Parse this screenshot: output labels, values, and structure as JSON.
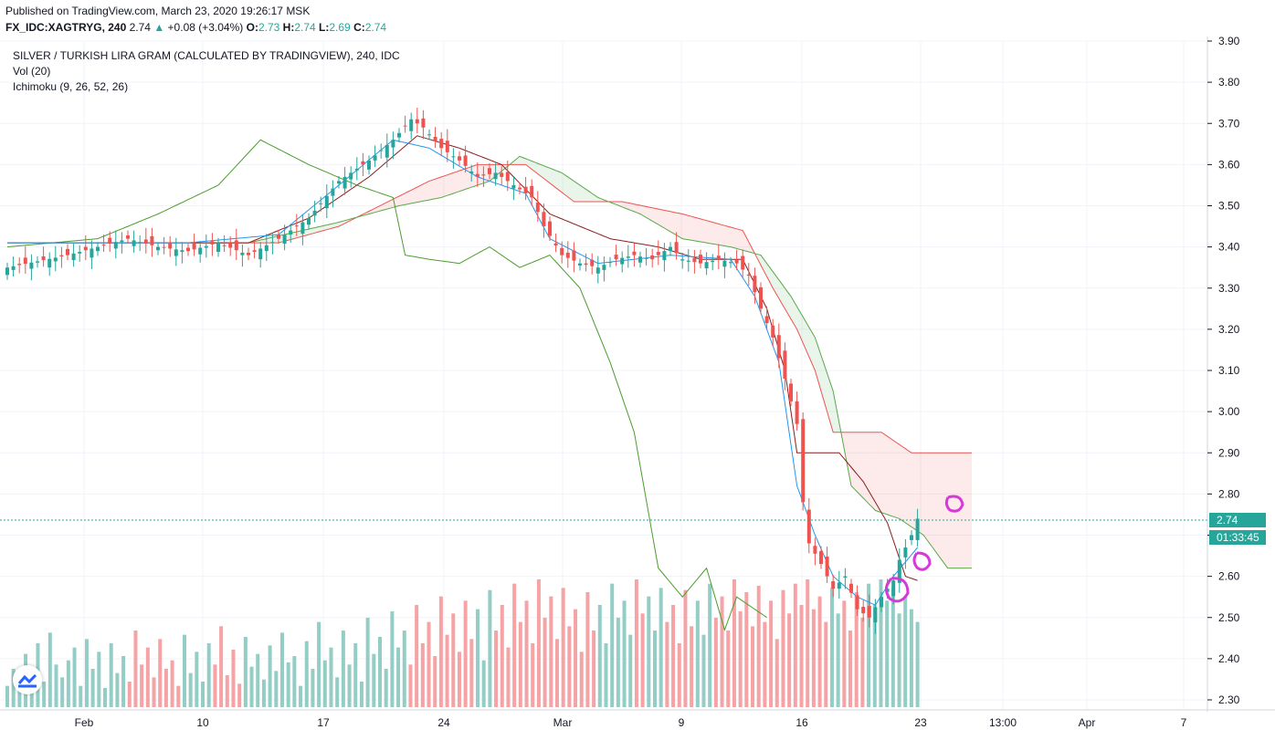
{
  "header": {
    "published": "Published on TradingView.com, March 23, 2020 19:26:17 MSK",
    "symbol": "FX_IDC:XAGTRYG, 240",
    "price": "2.74",
    "change": "+0.08 (+3.04%)",
    "o_label": "O:",
    "o_value": "2.73",
    "h_label": "H:",
    "h_value": "2.74",
    "l_label": "L:",
    "l_value": "2.69",
    "c_label": "C:",
    "c_value": "2.74"
  },
  "legend": {
    "title": "SILVER / TURKISH LIRA GRAM (CALCULATED BY TRADINGVIEW), 240, IDC",
    "volume": "Vol (20)",
    "ichimoku": "Ichimoku (9, 26, 52, 26)"
  },
  "price_tag": {
    "value": "2.74",
    "countdown": "01:33:45"
  },
  "colors": {
    "up": "#26a69a",
    "down": "#ef5350",
    "vol_up": "#93cdc5",
    "vol_down": "#f5a3a5",
    "tenkan": "#2196f3",
    "kijun": "#8b1e1e",
    "chikou": "#4c9c2e",
    "span_a": "#5aa84a",
    "span_b": "#ef5350",
    "annotation": "#d63ad6"
  },
  "chart_data": {
    "type": "candlestick",
    "ylim": [
      2.28,
      3.91
    ],
    "y_ticks": [
      "3.90",
      "3.80",
      "3.70",
      "3.60",
      "3.50",
      "3.40",
      "3.30",
      "3.20",
      "3.10",
      "3.00",
      "2.90",
      "2.80",
      "2.70",
      "2.60",
      "2.50",
      "2.40",
      "2.30"
    ],
    "x_ticks": [
      "Feb",
      "10",
      "17",
      "24",
      "Mar",
      "9",
      "16",
      "23",
      "13:00",
      "Apr",
      "7"
    ],
    "last_price": 2.74,
    "price_path": [
      [
        0,
        3.35
      ],
      [
        10,
        3.38
      ],
      [
        20,
        3.42
      ],
      [
        25,
        3.4
      ],
      [
        30,
        3.39
      ],
      [
        35,
        3.41
      ],
      [
        40,
        3.38
      ],
      [
        45,
        3.42
      ],
      [
        50,
        3.47
      ],
      [
        55,
        3.56
      ],
      [
        60,
        3.61
      ],
      [
        64,
        3.66
      ],
      [
        67,
        3.71
      ],
      [
        69,
        3.69
      ],
      [
        72,
        3.64
      ],
      [
        75,
        3.61
      ],
      [
        78,
        3.57
      ],
      [
        81,
        3.58
      ],
      [
        84,
        3.55
      ],
      [
        87,
        3.52
      ],
      [
        89,
        3.45
      ],
      [
        92,
        3.38
      ],
      [
        95,
        3.36
      ],
      [
        98,
        3.35
      ],
      [
        101,
        3.37
      ],
      [
        104,
        3.38
      ],
      [
        107,
        3.37
      ],
      [
        110,
        3.4
      ],
      [
        112,
        3.37
      ],
      [
        115,
        3.36
      ],
      [
        118,
        3.37
      ],
      [
        121,
        3.36
      ],
      [
        123,
        3.33
      ],
      [
        125,
        3.25
      ],
      [
        127,
        3.18
      ],
      [
        129,
        3.08
      ],
      [
        131,
        2.97
      ],
      [
        132,
        2.78
      ],
      [
        133,
        2.68
      ],
      [
        135,
        2.63
      ],
      [
        137,
        2.57
      ],
      [
        139,
        2.6
      ],
      [
        141,
        2.52
      ],
      [
        143,
        2.5
      ],
      [
        145,
        2.55
      ],
      [
        147,
        2.59
      ],
      [
        148,
        2.64
      ],
      [
        150,
        2.7
      ],
      [
        151,
        2.74
      ]
    ],
    "volume_max": 0.6,
    "volumes": [
      0.1,
      0.18,
      0.08,
      0.25,
      0.15,
      0.3,
      0.12,
      0.35,
      0.2,
      0.14,
      0.22,
      0.28,
      0.1,
      0.32,
      0.18,
      0.26,
      0.09,
      0.3,
      0.16,
      0.24,
      0.12,
      0.36,
      0.2,
      0.28,
      0.14,
      0.32,
      0.18,
      0.22,
      0.1,
      0.34,
      0.16,
      0.26,
      0.12,
      0.3,
      0.2,
      0.38,
      0.15,
      0.27,
      0.11,
      0.33,
      0.19,
      0.25,
      0.13,
      0.29,
      0.17,
      0.35,
      0.21,
      0.24,
      0.1,
      0.31,
      0.18,
      0.4,
      0.22,
      0.28,
      0.14,
      0.36,
      0.2,
      0.3,
      0.12,
      0.42,
      0.25,
      0.33,
      0.18,
      0.45,
      0.28,
      0.36,
      0.2,
      0.48,
      0.3,
      0.4,
      0.24,
      0.52,
      0.34,
      0.44,
      0.26,
      0.5,
      0.32,
      0.46,
      0.22,
      0.55,
      0.36,
      0.48,
      0.28,
      0.58,
      0.4,
      0.5,
      0.3,
      0.6,
      0.42,
      0.52,
      0.32,
      0.56,
      0.38,
      0.46,
      0.26,
      0.54,
      0.36,
      0.48,
      0.3,
      0.58,
      0.42,
      0.5,
      0.34,
      0.6,
      0.44,
      0.52,
      0.36,
      0.56,
      0.4,
      0.48,
      0.3,
      0.55,
      0.38,
      0.5,
      0.34,
      0.58,
      0.42,
      0.52,
      0.36,
      0.6,
      0.45,
      0.54,
      0.38,
      0.57,
      0.4,
      0.5,
      0.32,
      0.55,
      0.44,
      0.58,
      0.48,
      0.6,
      0.46,
      0.52,
      0.4,
      0.56,
      0.44,
      0.5,
      0.36,
      0.54,
      0.42,
      0.58,
      0.48,
      0.6,
      0.5,
      0.56,
      0.44,
      0.52,
      0.46,
      0.4
    ],
    "tenkan_path": [
      [
        0,
        3.41
      ],
      [
        30,
        3.41
      ],
      [
        45,
        3.43
      ],
      [
        55,
        3.55
      ],
      [
        64,
        3.66
      ],
      [
        70,
        3.64
      ],
      [
        78,
        3.57
      ],
      [
        86,
        3.53
      ],
      [
        90,
        3.42
      ],
      [
        98,
        3.36
      ],
      [
        110,
        3.38
      ],
      [
        120,
        3.37
      ],
      [
        124,
        3.28
      ],
      [
        128,
        3.12
      ],
      [
        131,
        2.82
      ],
      [
        134,
        2.7
      ],
      [
        137,
        2.6
      ],
      [
        141,
        2.55
      ],
      [
        144,
        2.53
      ],
      [
        147,
        2.6
      ],
      [
        151,
        2.67
      ]
    ],
    "kijun_path": [
      [
        0,
        3.41
      ],
      [
        40,
        3.41
      ],
      [
        50,
        3.47
      ],
      [
        60,
        3.57
      ],
      [
        68,
        3.67
      ],
      [
        75,
        3.64
      ],
      [
        82,
        3.6
      ],
      [
        90,
        3.48
      ],
      [
        100,
        3.42
      ],
      [
        108,
        3.4
      ],
      [
        115,
        3.37
      ],
      [
        122,
        3.37
      ],
      [
        126,
        3.25
      ],
      [
        129,
        3.1
      ],
      [
        131,
        2.9
      ],
      [
        138,
        2.9
      ],
      [
        142,
        2.83
      ],
      [
        146,
        2.73
      ],
      [
        149,
        2.6
      ],
      [
        151,
        2.59
      ]
    ],
    "chikou_path": [
      [
        0,
        3.4
      ],
      [
        15,
        3.42
      ],
      [
        25,
        3.48
      ],
      [
        35,
        3.55
      ],
      [
        42,
        3.66
      ],
      [
        50,
        3.6
      ],
      [
        58,
        3.55
      ],
      [
        64,
        3.52
      ],
      [
        66,
        3.38
      ],
      [
        70,
        3.37
      ],
      [
        75,
        3.36
      ],
      [
        80,
        3.4
      ],
      [
        85,
        3.35
      ],
      [
        90,
        3.38
      ],
      [
        95,
        3.3
      ],
      [
        100,
        3.12
      ],
      [
        104,
        2.95
      ],
      [
        108,
        2.62
      ],
      [
        112,
        2.55
      ],
      [
        116,
        2.62
      ],
      [
        119,
        2.47
      ],
      [
        121,
        2.55
      ],
      [
        124,
        2.52
      ],
      [
        126,
        2.5
      ]
    ],
    "span_a_path": [
      [
        0,
        3.41
      ],
      [
        40,
        3.41
      ],
      [
        55,
        3.46
      ],
      [
        65,
        3.5
      ],
      [
        72,
        3.52
      ],
      [
        80,
        3.56
      ],
      [
        85,
        3.62
      ],
      [
        92,
        3.58
      ],
      [
        98,
        3.52
      ],
      [
        105,
        3.48
      ],
      [
        112,
        3.42
      ],
      [
        120,
        3.4
      ],
      [
        125,
        3.38
      ],
      [
        130,
        3.28
      ],
      [
        134,
        3.18
      ],
      [
        137,
        3.05
      ],
      [
        140,
        2.82
      ],
      [
        144,
        2.76
      ],
      [
        148,
        2.74
      ],
      [
        152,
        2.7
      ],
      [
        156,
        2.62
      ],
      [
        160,
        2.62
      ]
    ],
    "span_b_path": [
      [
        0,
        3.41
      ],
      [
        45,
        3.41
      ],
      [
        55,
        3.45
      ],
      [
        70,
        3.56
      ],
      [
        78,
        3.6
      ],
      [
        86,
        3.6
      ],
      [
        94,
        3.51
      ],
      [
        102,
        3.51
      ],
      [
        112,
        3.48
      ],
      [
        122,
        3.44
      ],
      [
        127,
        3.3
      ],
      [
        131,
        3.2
      ],
      [
        134,
        3.1
      ],
      [
        137,
        2.95
      ],
      [
        145,
        2.95
      ],
      [
        150,
        2.9
      ],
      [
        160,
        2.9
      ]
    ]
  }
}
